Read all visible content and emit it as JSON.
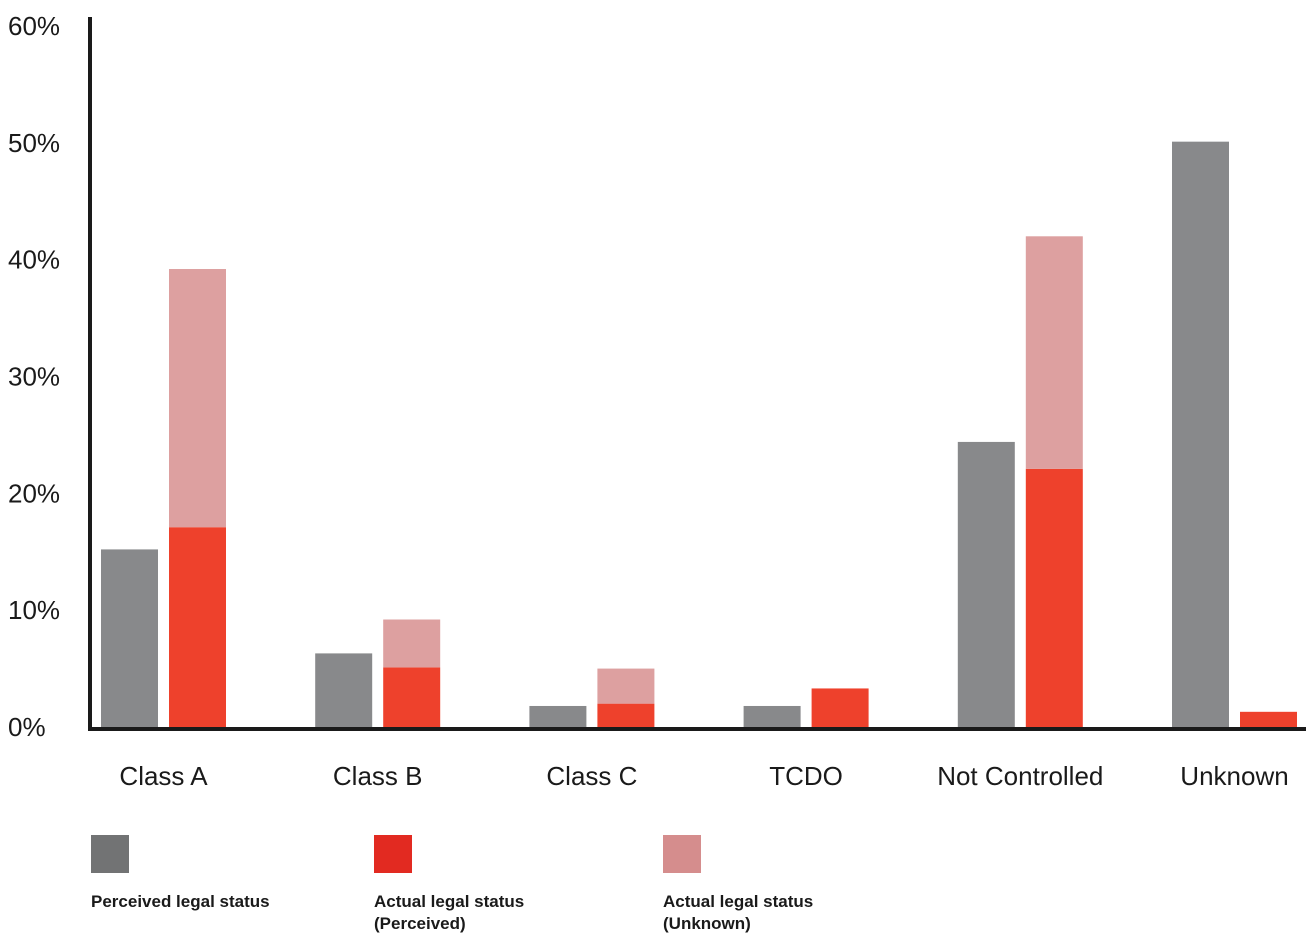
{
  "chart_data": {
    "type": "bar",
    "title": "",
    "xlabel": "",
    "ylabel": "",
    "ylim": [
      0,
      60
    ],
    "yticks": [
      "0%",
      "10%",
      "20%",
      "30%",
      "40%",
      "50%",
      "60%"
    ],
    "ytick_values": [
      0,
      10,
      20,
      30,
      40,
      50,
      60
    ],
    "grid": false,
    "legend_position": "bottom-left",
    "categories": [
      "Class A",
      "Class B",
      "Class C",
      "TCDO",
      "Not Controlled",
      "Unknown"
    ],
    "series": [
      {
        "name": "Perceived legal status",
        "color": "#88898b",
        "stack": "perceived",
        "values": [
          15.2,
          6.3,
          1.8,
          1.8,
          24.4,
          50.1
        ]
      },
      {
        "name": "Actual legal status (Perceived)",
        "color": "#ee412c",
        "stack": "actual",
        "values": [
          17.1,
          5.1,
          2.0,
          3.3,
          22.1,
          1.3
        ]
      },
      {
        "name": "Actual legal status (Unknown)",
        "color": "#dda0a0",
        "stack": "actual",
        "values": [
          22.1,
          4.1,
          3.0,
          0,
          19.9,
          0
        ]
      }
    ]
  },
  "legend": {
    "items": [
      {
        "line1": "Perceived legal status",
        "line2": "",
        "color": "#727374"
      },
      {
        "line1": "Actual legal status",
        "line2": "(Perceived)",
        "color": "#e22a21"
      },
      {
        "line1": "Actual legal status",
        "line2": "(Unknown)",
        "color": "#d58d8d"
      }
    ]
  }
}
